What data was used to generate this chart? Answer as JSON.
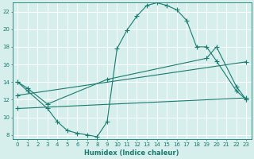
{
  "xlabel": "Humidex (Indice chaleur)",
  "bg_color": "#d6efed",
  "line_color": "#1a7a6e",
  "grid_color": "#ffffff",
  "xlim": [
    -0.5,
    23.5
  ],
  "ylim": [
    7.5,
    23
  ],
  "xticks": [
    0,
    1,
    2,
    3,
    4,
    5,
    6,
    7,
    8,
    9,
    10,
    11,
    12,
    13,
    14,
    15,
    16,
    17,
    18,
    19,
    20,
    21,
    22,
    23
  ],
  "yticks": [
    8,
    10,
    12,
    14,
    16,
    18,
    20,
    22
  ],
  "line1_x": [
    0,
    1,
    3,
    4,
    5,
    6,
    7,
    8,
    9,
    10,
    11,
    12,
    13,
    14,
    15,
    16,
    17,
    18,
    19,
    20,
    22,
    23
  ],
  "line1_y": [
    14,
    13,
    11,
    9.5,
    8.5,
    8.2,
    8.0,
    7.8,
    9.5,
    17.8,
    19.9,
    21.5,
    22.7,
    23.0,
    22.7,
    22.2,
    21.0,
    18.0,
    18.0,
    16.4,
    13.0,
    12.0
  ],
  "line2_x": [
    0,
    1,
    3,
    9,
    19,
    20,
    22,
    23
  ],
  "line2_y": [
    14,
    13.3,
    11.5,
    14.3,
    16.7,
    18.0,
    13.5,
    12.0
  ],
  "line3_x": [
    0,
    23
  ],
  "line3_y": [
    12.5,
    16.3
  ],
  "line4_x": [
    0,
    23
  ],
  "line4_y": [
    11.0,
    12.2
  ]
}
